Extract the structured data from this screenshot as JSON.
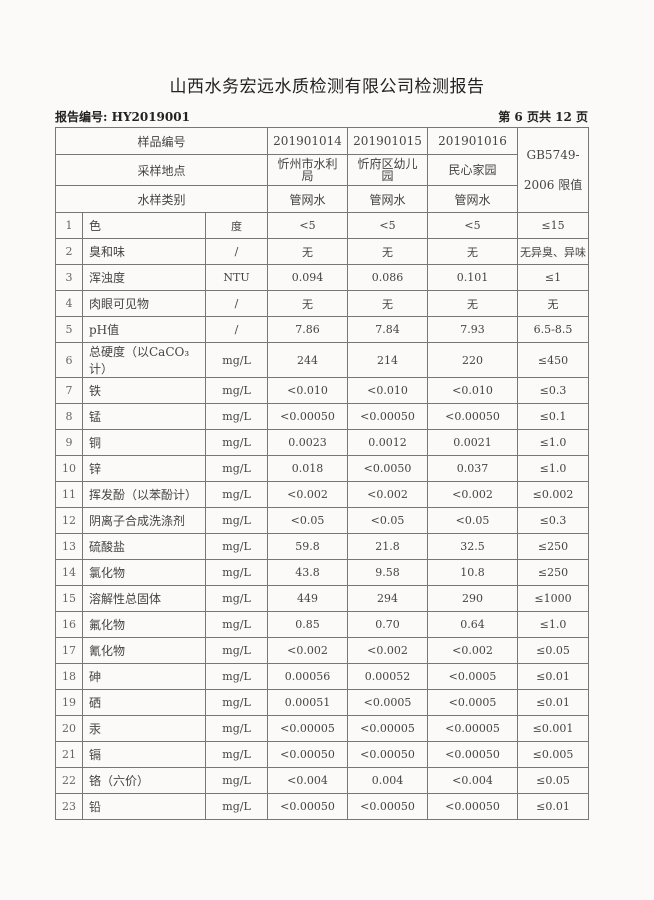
{
  "title": "山西水务宏远水质检测有限公司检测报告",
  "report_no": "报告编号: HY2019001",
  "page_info": "第 6 页共 12 页",
  "header": {
    "sample_no_label": "样品编号",
    "location_label": "采样地点",
    "type_label": "水样类别",
    "standard_label_1": "GB5749-",
    "standard_label_2": "2006 限值",
    "samples": [
      {
        "no": "201901014",
        "location": "忻州市水利局",
        "type": "管网水"
      },
      {
        "no": "201901015",
        "location": "忻府区幼儿园",
        "type": "管网水"
      },
      {
        "no": "201901016",
        "location": "民心家园",
        "type": "管网水"
      }
    ]
  },
  "rows": [
    {
      "n": "1",
      "item": "色",
      "unit": "度",
      "v": [
        "<5",
        "<5",
        "<5"
      ],
      "limit": "≤15"
    },
    {
      "n": "2",
      "item": "臭和味",
      "unit": "/",
      "v": [
        "无",
        "无",
        "无"
      ],
      "limit": "无异臭、异味"
    },
    {
      "n": "3",
      "item": "浑浊度",
      "unit": "NTU",
      "v": [
        "0.094",
        "0.086",
        "0.101"
      ],
      "limit": "≤1"
    },
    {
      "n": "4",
      "item": "肉眼可见物",
      "unit": "/",
      "v": [
        "无",
        "无",
        "无"
      ],
      "limit": "无"
    },
    {
      "n": "5",
      "item": "pH值",
      "unit": "/",
      "v": [
        "7.86",
        "7.84",
        "7.93"
      ],
      "limit": "6.5-8.5"
    },
    {
      "n": "6",
      "item": "总硬度（以CaCO₃计）",
      "unit": "mg/L",
      "v": [
        "244",
        "214",
        "220"
      ],
      "limit": "≤450"
    },
    {
      "n": "7",
      "item": "铁",
      "unit": "mg/L",
      "v": [
        "<0.010",
        "<0.010",
        "<0.010"
      ],
      "limit": "≤0.3"
    },
    {
      "n": "8",
      "item": "锰",
      "unit": "mg/L",
      "v": [
        "<0.00050",
        "<0.00050",
        "<0.00050"
      ],
      "limit": "≤0.1"
    },
    {
      "n": "9",
      "item": "铜",
      "unit": "mg/L",
      "v": [
        "0.0023",
        "0.0012",
        "0.0021"
      ],
      "limit": "≤1.0"
    },
    {
      "n": "10",
      "item": "锌",
      "unit": "mg/L",
      "v": [
        "0.018",
        "<0.0050",
        "0.037"
      ],
      "limit": "≤1.0"
    },
    {
      "n": "11",
      "item": "挥发酚（以苯酚计）",
      "unit": "mg/L",
      "v": [
        "<0.002",
        "<0.002",
        "<0.002"
      ],
      "limit": "≤0.002"
    },
    {
      "n": "12",
      "item": "阴离子合成洗涤剂",
      "unit": "mg/L",
      "v": [
        "<0.05",
        "<0.05",
        "<0.05"
      ],
      "limit": "≤0.3"
    },
    {
      "n": "13",
      "item": "硫酸盐",
      "unit": "mg/L",
      "v": [
        "59.8",
        "21.8",
        "32.5"
      ],
      "limit": "≤250"
    },
    {
      "n": "14",
      "item": "氯化物",
      "unit": "mg/L",
      "v": [
        "43.8",
        "9.58",
        "10.8"
      ],
      "limit": "≤250"
    },
    {
      "n": "15",
      "item": "溶解性总固体",
      "unit": "mg/L",
      "v": [
        "449",
        "294",
        "290"
      ],
      "limit": "≤1000"
    },
    {
      "n": "16",
      "item": "氟化物",
      "unit": "mg/L",
      "v": [
        "0.85",
        "0.70",
        "0.64"
      ],
      "limit": "≤1.0"
    },
    {
      "n": "17",
      "item": "氰化物",
      "unit": "mg/L",
      "v": [
        "<0.002",
        "<0.002",
        "<0.002"
      ],
      "limit": "≤0.05"
    },
    {
      "n": "18",
      "item": "砷",
      "unit": "mg/L",
      "v": [
        "0.00056",
        "0.00052",
        "<0.0005"
      ],
      "limit": "≤0.01"
    },
    {
      "n": "19",
      "item": "硒",
      "unit": "mg/L",
      "v": [
        "0.00051",
        "<0.0005",
        "<0.0005"
      ],
      "limit": "≤0.01"
    },
    {
      "n": "20",
      "item": "汞",
      "unit": "mg/L",
      "v": [
        "<0.00005",
        "<0.00005",
        "<0.00005"
      ],
      "limit": "≤0.001"
    },
    {
      "n": "21",
      "item": "镉",
      "unit": "mg/L",
      "v": [
        "<0.00050",
        "<0.00050",
        "<0.00050"
      ],
      "limit": "≤0.005"
    },
    {
      "n": "22",
      "item": "铬（六价）",
      "unit": "mg/L",
      "v": [
        "<0.004",
        "0.004",
        "<0.004"
      ],
      "limit": "≤0.05"
    },
    {
      "n": "23",
      "item": "铅",
      "unit": "mg/L",
      "v": [
        "<0.00050",
        "<0.00050",
        "<0.00050"
      ],
      "limit": "≤0.01"
    }
  ]
}
